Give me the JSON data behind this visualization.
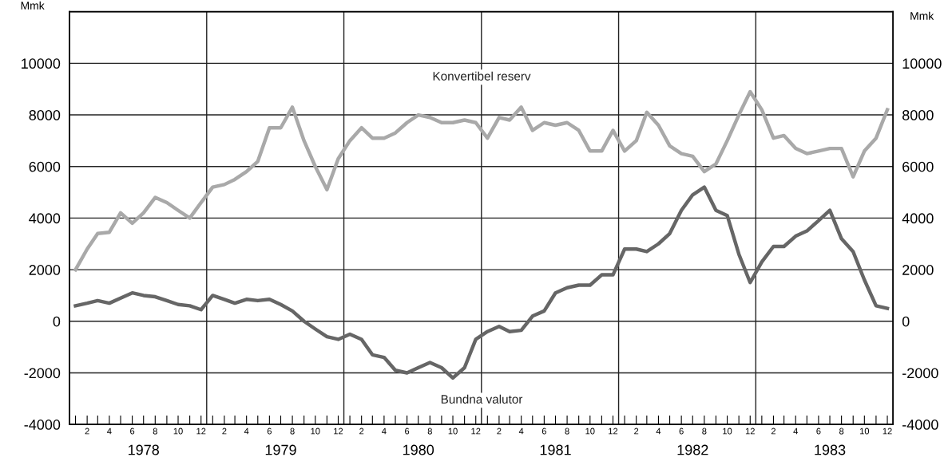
{
  "chart_data": {
    "type": "line",
    "x": [
      "1978-01",
      "1978-02",
      "1978-03",
      "1978-04",
      "1978-05",
      "1978-06",
      "1978-07",
      "1978-08",
      "1978-09",
      "1978-10",
      "1978-11",
      "1978-12",
      "1979-01",
      "1979-02",
      "1979-03",
      "1979-04",
      "1979-05",
      "1979-06",
      "1979-07",
      "1979-08",
      "1979-09",
      "1979-10",
      "1979-11",
      "1979-12",
      "1980-01",
      "1980-02",
      "1980-03",
      "1980-04",
      "1980-05",
      "1980-06",
      "1980-07",
      "1980-08",
      "1980-09",
      "1980-10",
      "1980-11",
      "1980-12",
      "1981-01",
      "1981-02",
      "1981-03",
      "1981-04",
      "1981-05",
      "1981-06",
      "1981-07",
      "1981-08",
      "1981-09",
      "1981-10",
      "1981-11",
      "1981-12",
      "1982-01",
      "1982-02",
      "1982-03",
      "1982-04",
      "1982-05",
      "1982-06",
      "1982-07",
      "1982-08",
      "1982-09",
      "1982-10",
      "1982-11",
      "1982-12",
      "1983-01",
      "1983-02",
      "1983-03",
      "1983-04",
      "1983-05",
      "1983-06",
      "1983-07",
      "1983-08",
      "1983-09",
      "1983-10",
      "1983-11",
      "1983-12"
    ],
    "series": [
      {
        "name": "Konvertibel reserv",
        "color": "#a9a9a9",
        "values": [
          2000,
          2800,
          3400,
          3450,
          4200,
          3800,
          4200,
          4800,
          4600,
          4300,
          4000,
          4600,
          5200,
          5300,
          5500,
          5800,
          6200,
          7500,
          7500,
          8300,
          7000,
          6000,
          5100,
          6300,
          7000,
          7500,
          7100,
          7100,
          7300,
          7700,
          8000,
          7900,
          7700,
          7700,
          7800,
          7700,
          7100,
          7900,
          7800,
          8300,
          7400,
          7700,
          7600,
          7700,
          7400,
          6600,
          6600,
          7400,
          6600,
          7000,
          8100,
          7600,
          6800,
          6500,
          6400,
          5800,
          6100,
          7000,
          8000,
          8900,
          8200,
          7100,
          7200,
          6700,
          6500,
          6600,
          6700,
          6700,
          5600,
          6600,
          7100,
          8200
        ]
      },
      {
        "name": "Bundna valutor",
        "color": "#666666",
        "values": [
          600,
          700,
          800,
          700,
          900,
          1100,
          1000,
          950,
          800,
          650,
          600,
          450,
          1000,
          850,
          700,
          850,
          800,
          850,
          650,
          400,
          0,
          -300,
          -600,
          -700,
          -500,
          -700,
          -1300,
          -1400,
          -1900,
          -2000,
          -1800,
          -1600,
          -1800,
          -2200,
          -1800,
          -700,
          -400,
          -200,
          -400,
          -350,
          200,
          400,
          1100,
          1300,
          1400,
          1400,
          1800,
          1800,
          2800,
          2800,
          2700,
          3000,
          3400,
          4300,
          4900,
          5200,
          4300,
          4100,
          2600,
          1500,
          2300,
          2900,
          2900,
          3300,
          3500,
          3900,
          4300,
          3200,
          2700,
          1600,
          600,
          500
        ]
      }
    ],
    "xlim": [
      "1977-12-16",
      "1983-12-16"
    ],
    "xticks": [
      {
        "value": "1978-01",
        "label": null
      },
      {
        "value": "1978-02",
        "label": "2"
      },
      {
        "value": "1978-03",
        "label": null
      },
      {
        "value": "1978-04",
        "label": "4"
      },
      {
        "value": "1978-05",
        "label": null
      },
      {
        "value": "1978-06",
        "label": "6"
      },
      {
        "value": "1978-07",
        "label": null
      },
      {
        "value": "1978-08",
        "label": "8"
      },
      {
        "value": "1978-09",
        "label": null
      },
      {
        "value": "1978-10",
        "label": "10"
      },
      {
        "value": "1978-11",
        "label": null
      },
      {
        "value": "1978-12",
        "label": "12"
      },
      {
        "value": "1979-01",
        "label": null
      },
      {
        "value": "1979-02",
        "label": "2"
      },
      {
        "value": "1979-03",
        "label": null
      },
      {
        "value": "1979-04",
        "label": "4"
      },
      {
        "value": "1979-05",
        "label": null
      },
      {
        "value": "1979-06",
        "label": "6"
      },
      {
        "value": "1979-07",
        "label": null
      },
      {
        "value": "1979-08",
        "label": "8"
      },
      {
        "value": "1979-09",
        "label": null
      },
      {
        "value": "1979-10",
        "label": "10"
      },
      {
        "value": "1979-11",
        "label": null
      },
      {
        "value": "1979-12",
        "label": "12"
      },
      {
        "value": "1980-01",
        "label": null
      },
      {
        "value": "1980-02",
        "label": "2"
      },
      {
        "value": "1980-03",
        "label": null
      },
      {
        "value": "1980-04",
        "label": "4"
      },
      {
        "value": "1980-05",
        "label": null
      },
      {
        "value": "1980-06",
        "label": "6"
      },
      {
        "value": "1980-07",
        "label": null
      },
      {
        "value": "1980-08",
        "label": "8"
      },
      {
        "value": "1980-09",
        "label": null
      },
      {
        "value": "1980-10",
        "label": "10"
      },
      {
        "value": "1980-11",
        "label": null
      },
      {
        "value": "1980-12",
        "label": "12"
      },
      {
        "value": "1981-01",
        "label": null
      },
      {
        "value": "1981-02",
        "label": "2"
      },
      {
        "value": "1981-03",
        "label": null
      },
      {
        "value": "1981-04",
        "label": "4"
      },
      {
        "value": "1981-05",
        "label": null
      },
      {
        "value": "1981-06",
        "label": "6"
      },
      {
        "value": "1981-07",
        "label": null
      },
      {
        "value": "1981-08",
        "label": "8"
      },
      {
        "value": "1981-09",
        "label": null
      },
      {
        "value": "1981-10",
        "label": "10"
      },
      {
        "value": "1981-11",
        "label": null
      },
      {
        "value": "1981-12",
        "label": "12"
      },
      {
        "value": "1982-01",
        "label": null
      },
      {
        "value": "1982-02",
        "label": "2"
      },
      {
        "value": "1982-03",
        "label": null
      },
      {
        "value": "1982-04",
        "label": "4"
      },
      {
        "value": "1982-05",
        "label": null
      },
      {
        "value": "1982-06",
        "label": "6"
      },
      {
        "value": "1982-07",
        "label": null
      },
      {
        "value": "1982-08",
        "label": "8"
      },
      {
        "value": "1982-09",
        "label": null
      },
      {
        "value": "1982-10",
        "label": "10"
      },
      {
        "value": "1982-11",
        "label": null
      },
      {
        "value": "1982-12",
        "label": "12"
      },
      {
        "value": "1983-01",
        "label": null
      },
      {
        "value": "1983-02",
        "label": "2"
      },
      {
        "value": "1983-03",
        "label": null
      },
      {
        "value": "1983-04",
        "label": "4"
      },
      {
        "value": "1983-05",
        "label": null
      },
      {
        "value": "1983-06",
        "label": "6"
      },
      {
        "value": "1983-07",
        "label": null
      },
      {
        "value": "1983-08",
        "label": "8"
      },
      {
        "value": "1983-09",
        "label": null
      },
      {
        "value": "1983-10",
        "label": "10"
      },
      {
        "value": "1983-11",
        "label": null
      },
      {
        "value": "1983-12",
        "label": "12"
      }
    ],
    "x2lim": [
      "1977-12-16",
      "1983-12-16"
    ],
    "x2ticks": [
      {
        "value": "1978-07",
        "label": "1978"
      },
      {
        "value": "1979-07",
        "label": "1979"
      },
      {
        "value": "1980-07",
        "label": "1980"
      },
      {
        "value": "1981-07",
        "label": "1981"
      },
      {
        "value": "1982-07",
        "label": "1982"
      },
      {
        "value": "1983-07",
        "label": "1983"
      }
    ],
    "ylim": [
      -4000,
      12000
    ],
    "yticks": [
      -4000,
      -2000,
      0,
      2000,
      4000,
      6000,
      8000,
      10000
    ],
    "y2lim": [
      -4000,
      12000
    ],
    "y2ticks": [
      -4000,
      -2000,
      0,
      2000,
      4000,
      6000,
      8000,
      10000
    ],
    "ylabel": "Mmk",
    "y2label": "Mmk",
    "ref_lines": [
      {
        "axis": "x",
        "value": "1978-12-16",
        "label": null
      },
      {
        "axis": "x",
        "value": "1979-12-16",
        "label": null
      },
      {
        "axis": "x",
        "value": "1980-12-16",
        "label": null
      },
      {
        "axis": "x",
        "value": "1981-12-16",
        "label": null
      },
      {
        "axis": "x",
        "value": "1982-12-16",
        "label": null
      }
    ],
    "grid": "y",
    "legend": false,
    "marker": "none",
    "line_style": "solid"
  }
}
